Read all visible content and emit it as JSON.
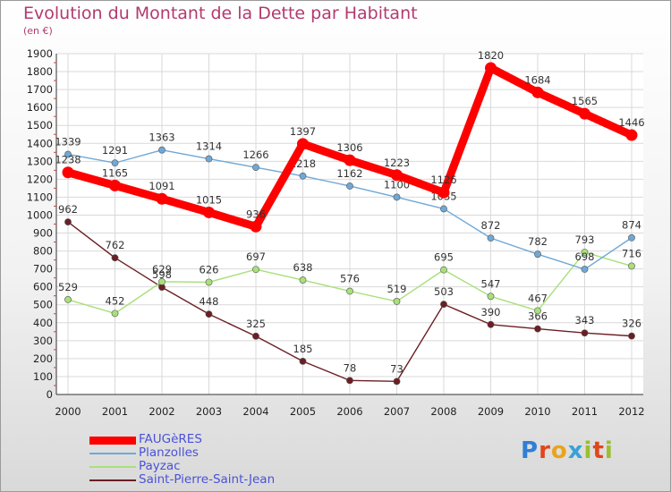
{
  "title": "Evolution du Montant de la Dette par Habitant",
  "subtitle": "(en €)",
  "logo": {
    "letters": [
      "P",
      "r",
      "o",
      "x",
      "i",
      "t",
      "i"
    ],
    "colors": [
      "#2f7fd6",
      "#e0471b",
      "#e8a41c",
      "#3aa0d8",
      "#9bbf2e",
      "#e0471b",
      "#9bbf2e"
    ]
  },
  "chart_data": {
    "type": "line",
    "x": [
      "2000",
      "2001",
      "2002",
      "2003",
      "2004",
      "2005",
      "2006",
      "2007",
      "2008",
      "2009",
      "2010",
      "2011",
      "2012"
    ],
    "ylim": [
      0,
      1900
    ],
    "yticks": [
      0,
      100,
      200,
      300,
      400,
      500,
      600,
      700,
      800,
      900,
      1000,
      1100,
      1200,
      1300,
      1400,
      1500,
      1600,
      1700,
      1800,
      1900
    ],
    "grid": true,
    "legend": "bottom-left",
    "series": [
      {
        "name": "FAUGèRES",
        "color": "#ff0000",
        "values": [
          1238,
          1165,
          1091,
          1015,
          936,
          1397,
          1306,
          1223,
          1126,
          1820,
          1684,
          1565,
          1446
        ]
      },
      {
        "name": "Planzolles",
        "color": "#6fa8d6",
        "values": [
          1339,
          1291,
          1363,
          1314,
          1266,
          1218,
          1162,
          1100,
          1035,
          872,
          782,
          698,
          874
        ]
      },
      {
        "name": "Payzac",
        "color": "#a8e07a",
        "values": [
          529,
          452,
          629,
          626,
          697,
          638,
          576,
          519,
          695,
          547,
          467,
          793,
          716
        ]
      },
      {
        "name": "Saint-Pierre-Saint-Jean",
        "color": "#6b1f24",
        "values": [
          962,
          762,
          598,
          448,
          325,
          185,
          78,
          73,
          503,
          390,
          366,
          343,
          326
        ]
      }
    ]
  }
}
